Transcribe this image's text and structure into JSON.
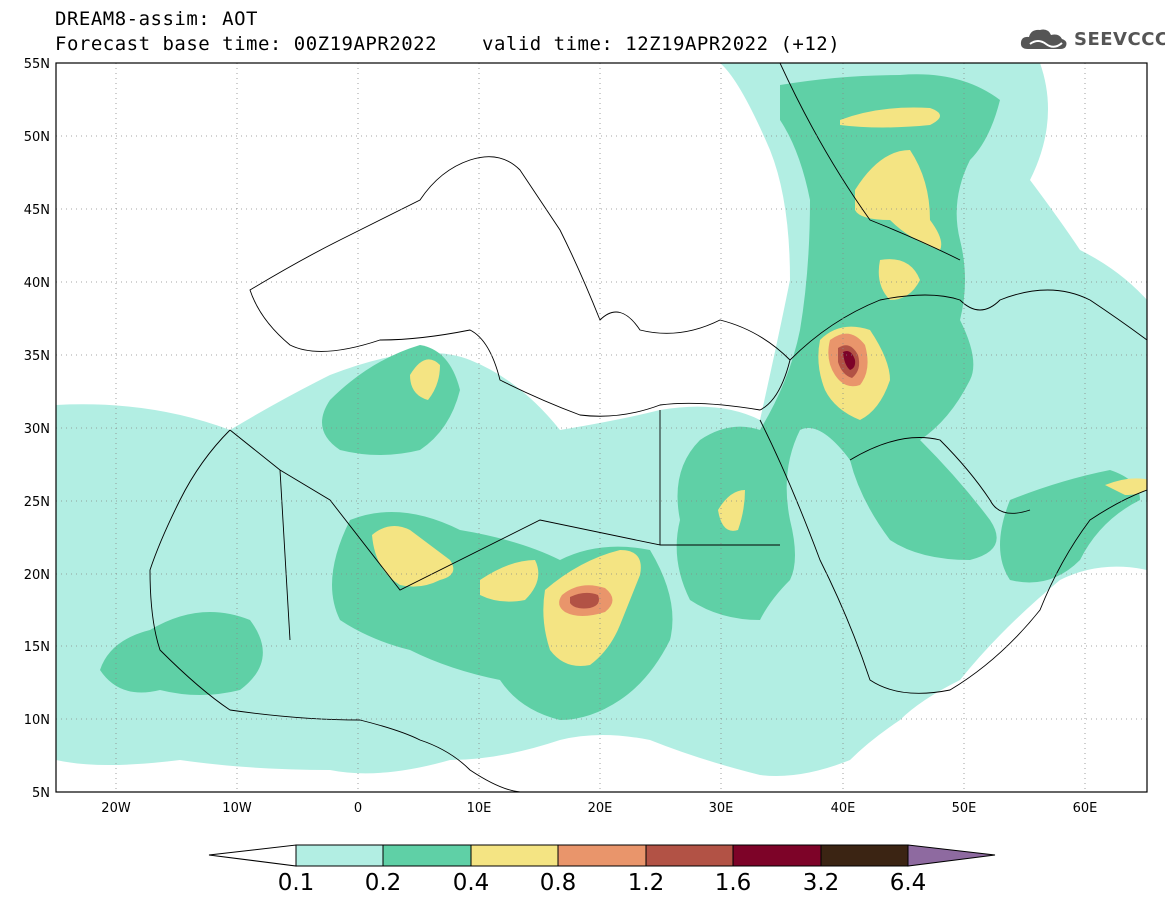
{
  "header": {
    "line1": "DREAM8-assim: AOT",
    "line2": "Forecast base time: 00Z19APR2022",
    "valid": "valid time: 12Z19APR2022 (+12)"
  },
  "logo": {
    "icon": "cloud-logo-icon",
    "text": "SEEVCCC"
  },
  "map": {
    "region": "North Africa, Europe and Middle East",
    "lat_range": [
      5,
      55
    ],
    "lon_range": [
      -25,
      65
    ],
    "lat_labels": [
      "55N",
      "50N",
      "45N",
      "40N",
      "35N",
      "30N",
      "25N",
      "20N",
      "15N",
      "10N",
      "5N"
    ],
    "lon_labels": [
      "20W",
      "10W",
      "0",
      "10E",
      "20E",
      "30E",
      "40E",
      "50E",
      "60E"
    ],
    "grid": "dotted",
    "colors": {
      "c1": "#b2eee3",
      "c2": "#5fd0a6",
      "c3": "#f4e483",
      "c4": "#e9956b",
      "c5": "#b25245",
      "c6": "#7d0328",
      "c7": "#3b2413",
      "over": "#8e6aa0"
    }
  },
  "colorbar": {
    "labels": [
      "0.1",
      "0.2",
      "0.4",
      "0.8",
      "1.2",
      "1.6",
      "3.2",
      "6.4"
    ]
  }
}
